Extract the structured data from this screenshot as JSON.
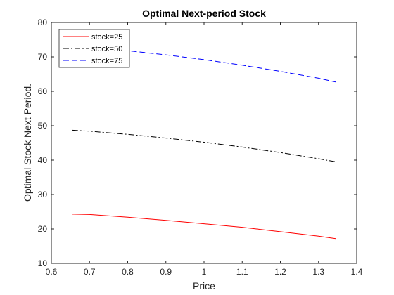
{
  "chart_data": {
    "type": "line",
    "title": "Optimal Next-period Stock",
    "xlabel": "Price",
    "ylabel": "Optimal Stock Next Period.",
    "xlim": [
      0.6,
      1.4
    ],
    "ylim": [
      10,
      80
    ],
    "xticks": [
      0.6,
      0.7,
      0.8,
      0.9,
      1,
      1.1,
      1.2,
      1.3,
      1.4
    ],
    "yticks": [
      10,
      20,
      30,
      40,
      50,
      60,
      70,
      80
    ],
    "xtick_labels": [
      "0.6",
      "0.7",
      "0.8",
      "0.9",
      "1",
      "1.1",
      "1.2",
      "1.3",
      "1.4"
    ],
    "ytick_labels": [
      "10",
      "20",
      "30",
      "40",
      "50",
      "60",
      "70",
      "80"
    ],
    "grid": false,
    "legend_position": "top-left",
    "x": [
      0.655,
      0.7,
      0.8,
      0.9,
      1.0,
      1.1,
      1.2,
      1.3,
      1.345
    ],
    "series": [
      {
        "name": "stock=25",
        "color": "#ff0000",
        "dash": "solid",
        "values": [
          24.3,
          24.2,
          23.4,
          22.5,
          21.5,
          20.5,
          19.2,
          17.9,
          17.2
        ]
      },
      {
        "name": "stock=50",
        "color": "#000000",
        "dash": "dashdot",
        "values": [
          48.7,
          48.4,
          47.5,
          46.4,
          45.2,
          43.8,
          42.2,
          40.4,
          39.5
        ]
      },
      {
        "name": "stock=75",
        "color": "#0000ff",
        "dash": "dashed",
        "values": [
          73.2,
          72.8,
          71.8,
          70.6,
          69.2,
          67.6,
          65.8,
          63.8,
          62.7
        ]
      }
    ]
  }
}
